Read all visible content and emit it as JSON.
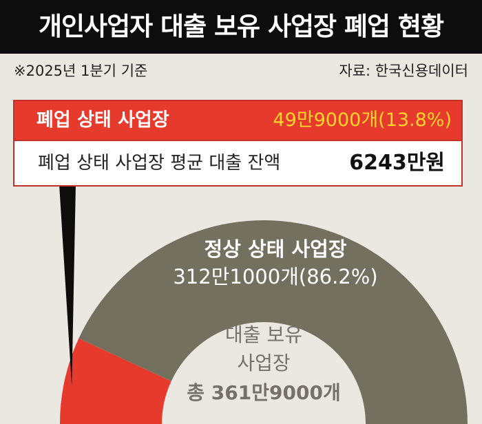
{
  "header": {
    "title": "개인사업자 대출 보유 사업장 폐업 현황"
  },
  "notes": {
    "basis": "※2025년 1분기 기준",
    "source": "자료: 한국신용데이터"
  },
  "cards": {
    "closed_label": "폐업 상태 사업장",
    "closed_value": "49만9000개(13.8%)",
    "debt_label": "폐업 상태 사업장 평균 대출 잔액",
    "debt_value": "6243만원"
  },
  "colors": {
    "closed": "#e63a2c",
    "normal": "#74705f",
    "background": "#ebe7e1",
    "highlight": "#ffd52e"
  },
  "chart_data": {
    "type": "pie",
    "style": "half-donut",
    "slices": [
      {
        "label": "폐업 상태 사업장",
        "value": 13.8,
        "count": "49만9000개"
      },
      {
        "label": "정상 상태 사업장",
        "value": 86.2,
        "count": "312만1000개"
      }
    ],
    "normal_label": "정상 상태 사업장",
    "normal_value": "312만1000개(86.2%)",
    "center_line1": "대출 보유",
    "center_line2": "사업장",
    "center_line3": "총 361만9000개"
  }
}
